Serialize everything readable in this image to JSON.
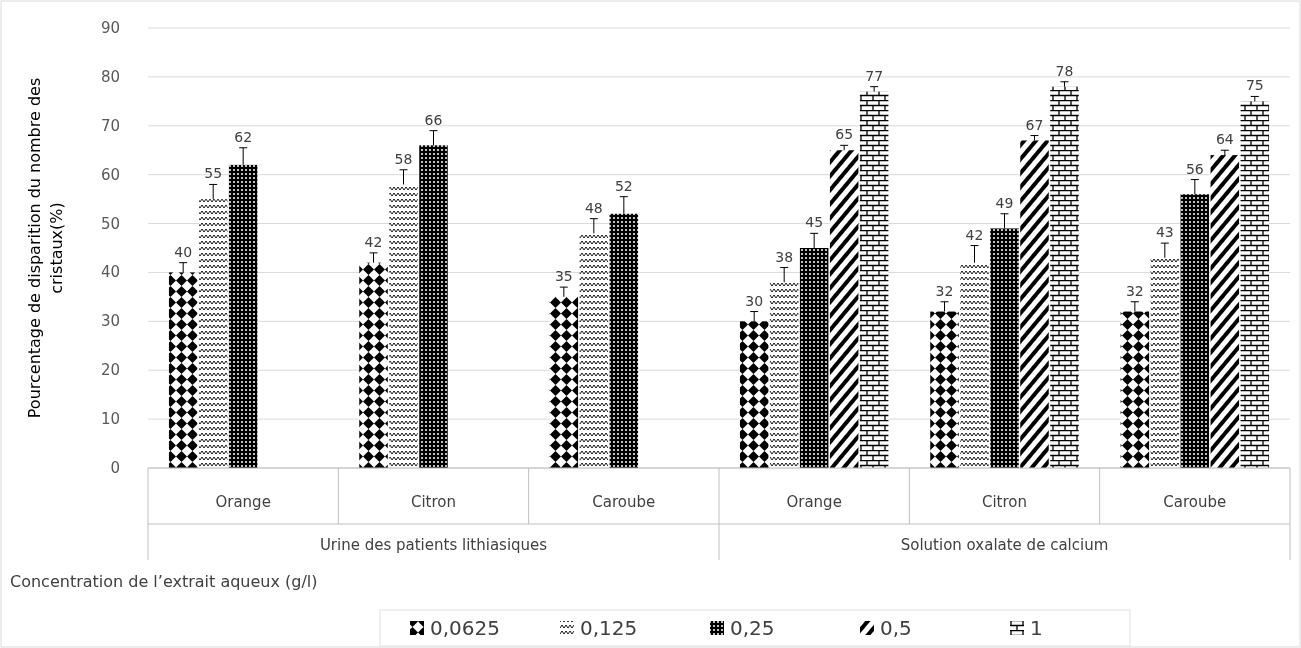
{
  "chart_data": {
    "type": "bar",
    "ylabel": "Pourcentage de disparition du nombre des cristaux(%)",
    "xlabel": "Concentration de l’extrait aqueux (g/l)",
    "categories": [
      "Orange",
      "Citron",
      "Caroube",
      "Orange",
      "Citron",
      "Caroube"
    ],
    "annotations": [
      "Urine des patients lithiasiques",
      "Solution oxalate de calcium"
    ],
    "series": [
      {
        "name": "0,0625",
        "color": "#000000",
        "values": [
          40,
          42,
          35,
          30,
          32,
          32
        ],
        "errors": [
          2,
          2,
          2,
          2,
          2,
          2
        ]
      },
      {
        "name": "0,125",
        "color": "#000000",
        "values": [
          55,
          58,
          48,
          38,
          42,
          43
        ],
        "errors": [
          3,
          3,
          3,
          3,
          3.5,
          3
        ]
      },
      {
        "name": "0,25",
        "color": "#000000",
        "values": [
          62,
          66,
          52,
          45,
          49,
          56
        ],
        "errors": [
          3.5,
          3,
          3.5,
          3,
          3,
          3
        ]
      },
      {
        "name": "0,5",
        "color": "#000000",
        "values": [
          null,
          null,
          null,
          65,
          67,
          64
        ],
        "errors": [
          null,
          null,
          null,
          1,
          1,
          1
        ]
      },
      {
        "name": "1",
        "color": "#000000",
        "values": [
          null,
          null,
          null,
          77,
          78,
          75
        ],
        "errors": [
          null,
          null,
          null,
          1,
          1,
          1
        ]
      }
    ],
    "ylim": [
      0,
      90
    ],
    "yticks": [
      0,
      10,
      20,
      30,
      40,
      50,
      60,
      70,
      80,
      90
    ],
    "grid": "y",
    "legend": "bottom",
    "data_labels": true
  }
}
